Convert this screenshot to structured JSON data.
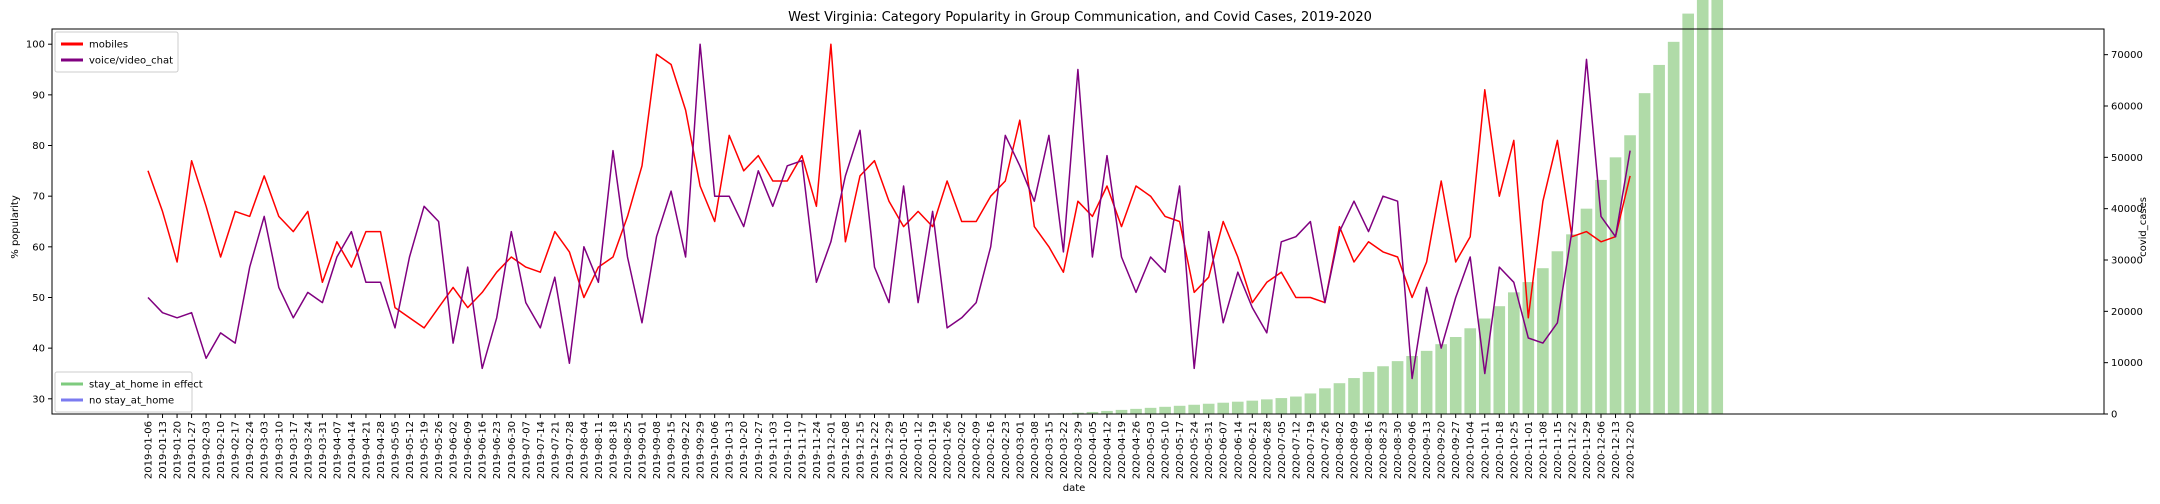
{
  "chart_data": {
    "type": "line",
    "title": "West Virginia: Category Popularity in Group Communication, and Covid Cases, 2019-2020",
    "xlabel": "date",
    "ylabel_left": "% popularity",
    "ylabel_right": "covid_cases",
    "ylim_left": [
      27,
      103
    ],
    "ylim_right": [
      0,
      75000
    ],
    "yticks_left": [
      30,
      40,
      50,
      60,
      70,
      80,
      90,
      100
    ],
    "yticks_right": [
      0,
      10000,
      20000,
      30000,
      40000,
      50000,
      60000,
      70000
    ],
    "grid": false,
    "legend_top_position": "top-left",
    "legend_bottom_position": "bottom-left",
    "dates": [
      "2019-01-06",
      "2019-01-13",
      "2019-01-20",
      "2019-01-27",
      "2019-02-03",
      "2019-02-10",
      "2019-02-17",
      "2019-02-24",
      "2019-03-03",
      "2019-03-10",
      "2019-03-17",
      "2019-03-24",
      "2019-03-31",
      "2019-04-07",
      "2019-04-14",
      "2019-04-21",
      "2019-04-28",
      "2019-05-05",
      "2019-05-12",
      "2019-05-19",
      "2019-05-26",
      "2019-06-02",
      "2019-06-09",
      "2019-06-16",
      "2019-06-23",
      "2019-06-30",
      "2019-07-07",
      "2019-07-14",
      "2019-07-21",
      "2019-07-28",
      "2019-08-04",
      "2019-08-11",
      "2019-08-18",
      "2019-08-25",
      "2019-09-01",
      "2019-09-08",
      "2019-09-15",
      "2019-09-22",
      "2019-09-29",
      "2019-10-06",
      "2019-10-13",
      "2019-10-20",
      "2019-10-27",
      "2019-11-03",
      "2019-11-10",
      "2019-11-17",
      "2019-11-24",
      "2019-12-01",
      "2019-12-08",
      "2019-12-15",
      "2019-12-22",
      "2019-12-29",
      "2020-01-05",
      "2020-01-12",
      "2020-01-19",
      "2020-01-26",
      "2020-02-02",
      "2020-02-09",
      "2020-02-16",
      "2020-02-23",
      "2020-03-01",
      "2020-03-08",
      "2020-03-15",
      "2020-03-22",
      "2020-03-29",
      "2020-04-05",
      "2020-04-12",
      "2020-04-19",
      "2020-04-26",
      "2020-05-03",
      "2020-05-10",
      "2020-05-17",
      "2020-05-24",
      "2020-05-31",
      "2020-06-07",
      "2020-06-14",
      "2020-06-21",
      "2020-06-28",
      "2020-07-05",
      "2020-07-12",
      "2020-07-19",
      "2020-07-26",
      "2020-08-02",
      "2020-08-09",
      "2020-08-16",
      "2020-08-23",
      "2020-08-30",
      "2020-09-06",
      "2020-09-13",
      "2020-09-20",
      "2020-09-27",
      "2020-10-04",
      "2020-10-11",
      "2020-10-18",
      "2020-10-25",
      "2020-11-01",
      "2020-11-08",
      "2020-11-15",
      "2020-11-22",
      "2020-11-29",
      "2020-12-06",
      "2020-12-13",
      "2020-12-20"
    ],
    "series": [
      {
        "name": "mobiles",
        "color": "#ff0000",
        "values": [
          75,
          67,
          57,
          77,
          68,
          58,
          67,
          66,
          74,
          66,
          63,
          67,
          53,
          61,
          56,
          63,
          63,
          48,
          46,
          44,
          48,
          52,
          48,
          51,
          55,
          58,
          56,
          55,
          63,
          59,
          50,
          56,
          58,
          66,
          76,
          98,
          96,
          87,
          72,
          65,
          82,
          75,
          78,
          73,
          73,
          78,
          68,
          100,
          61,
          74,
          77,
          69,
          64,
          67,
          64,
          73,
          65,
          65,
          70,
          73,
          85,
          64,
          60,
          55,
          69,
          66,
          72,
          64,
          72,
          70,
          66,
          65,
          51,
          54,
          65,
          58,
          49,
          53,
          55,
          50,
          50,
          49,
          64,
          57,
          61,
          59,
          58,
          50,
          57,
          73,
          57,
          62,
          91,
          70,
          81,
          46,
          69,
          81,
          62,
          63,
          61,
          62,
          74
        ]
      },
      {
        "name": "voice/video_chat",
        "color": "#800080",
        "values": [
          50,
          47,
          46,
          47,
          38,
          43,
          41,
          56,
          66,
          52,
          46,
          51,
          49,
          58,
          63,
          53,
          53,
          44,
          58,
          68,
          65,
          41,
          56,
          36,
          46,
          63,
          49,
          44,
          54,
          37,
          60,
          53,
          79,
          58,
          45,
          62,
          71,
          58,
          100,
          70,
          70,
          64,
          75,
          68,
          76,
          77,
          53,
          61,
          74,
          83,
          56,
          49,
          72,
          49,
          67,
          44,
          46,
          49,
          60,
          82,
          76,
          69,
          82,
          59,
          95,
          58,
          78,
          58,
          51,
          58,
          55,
          72,
          36,
          63,
          45,
          55,
          48,
          43,
          61,
          62,
          65,
          49,
          63,
          69,
          63,
          70,
          69,
          34,
          52,
          40,
          50,
          58,
          35,
          56,
          53,
          42,
          41,
          45,
          63,
          97,
          66,
          62,
          79
        ]
      }
    ],
    "cases": {
      "name": "covid_cases",
      "color": "#b0dba8",
      "start_index": 63,
      "values": [
        120,
        250,
        400,
        600,
        800,
        1000,
        1200,
        1400,
        1600,
        1800,
        2000,
        2200,
        2400,
        2600,
        2850,
        3100,
        3400,
        4000,
        5000,
        6000,
        7000,
        8200,
        9300,
        10300,
        11300,
        12300,
        13600,
        15000,
        16700,
        18600,
        21000,
        23700,
        25700,
        28400,
        31700,
        35000,
        40000,
        45600,
        50000,
        54300,
        62500,
        68000,
        72500,
        78000,
        84000,
        88000
      ]
    },
    "legend_top": [
      {
        "label": "mobiles",
        "color": "#ff0000"
      },
      {
        "label": "voice/video_chat",
        "color": "#800080"
      }
    ],
    "legend_bottom": [
      {
        "label": "stay_at_home in effect",
        "color": "#7ecb7e"
      },
      {
        "label": "no stay_at_home",
        "color": "#7b7bf0"
      }
    ]
  }
}
